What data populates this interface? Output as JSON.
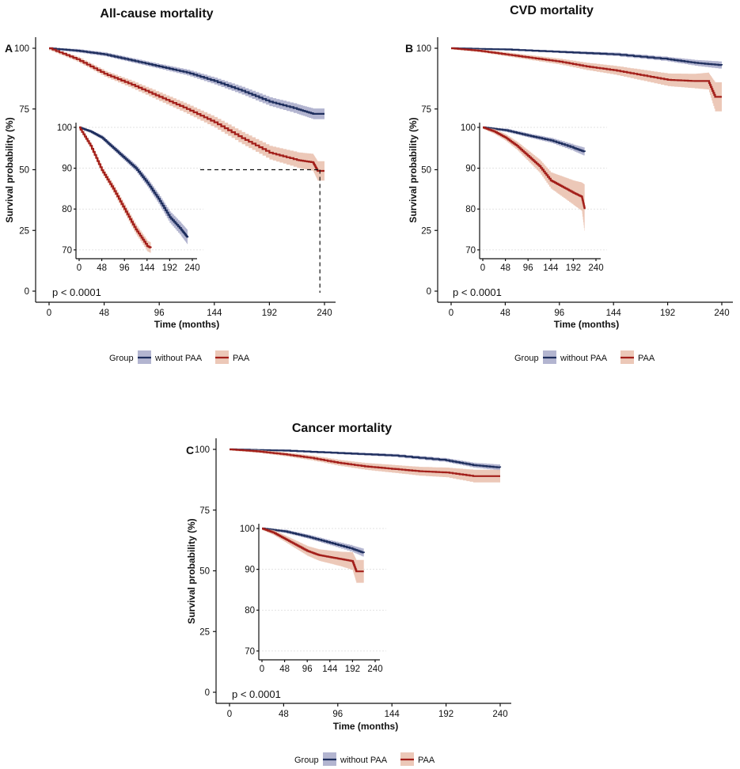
{
  "chart_data": [
    {
      "panel": "A",
      "title": "All-cause mortality",
      "type": "line",
      "xlabel": "Time (months)",
      "ylabel": "Survival probability (%)",
      "xticks": [
        0,
        48,
        96,
        144,
        192,
        240
      ],
      "yticks": [
        0,
        25,
        50,
        75,
        100
      ],
      "xlim": [
        0,
        240
      ],
      "ylim": [
        0,
        100
      ],
      "pvalue": "p < 0.0001",
      "median_line": {
        "x": 236,
        "y": 50
      },
      "series": [
        {
          "name": "without PAA",
          "color": "#1f2f5e",
          "band": "#9a9cc0",
          "x": [
            0,
            24,
            48,
            72,
            96,
            120,
            144,
            168,
            192,
            216,
            230,
            240
          ],
          "y": [
            100,
            99,
            97.5,
            95,
            92.5,
            90,
            86.5,
            82.5,
            78,
            75,
            73,
            73
          ],
          "ci": [
            0.6,
            0.7,
            0.8,
            0.9,
            1.0,
            1.2,
            1.4,
            1.6,
            1.8,
            2.0,
            2.2,
            2.2
          ]
        },
        {
          "name": "PAA",
          "color": "#a31f1a",
          "band": "#e6b5a0",
          "x": [
            0,
            24,
            48,
            72,
            96,
            120,
            144,
            168,
            192,
            216,
            230,
            234,
            240
          ],
          "y": [
            100,
            95.5,
            89.5,
            85,
            80,
            75,
            69.5,
            63,
            57,
            54,
            53,
            49.5,
            49.5
          ],
          "ci": [
            0.8,
            1.0,
            1.2,
            1.5,
            1.8,
            2.0,
            2.2,
            2.5,
            2.8,
            3.2,
            3.5,
            4.0,
            4.0
          ]
        }
      ],
      "inset": {
        "xticks": [
          0,
          48,
          96,
          144,
          192,
          240
        ],
        "yticks": [
          70,
          80,
          90,
          100
        ],
        "xlim": [
          0,
          240
        ],
        "ylim": [
          69,
          100
        ],
        "series": [
          {
            "name": "without PAA",
            "x": [
              0,
              24,
              48,
              72,
              96,
              120,
              144,
              168,
              192,
              216,
              230
            ],
            "y": [
              100,
              99,
              97.5,
              95,
              92.5,
              90,
              86.5,
              82.5,
              78,
              75,
              73
            ],
            "ci": [
              0.3,
              0.4,
              0.5,
              0.6,
              0.7,
              0.8,
              1.0,
              1.2,
              1.4,
              1.6,
              1.8
            ]
          },
          {
            "name": "PAA",
            "x": [
              0,
              24,
              48,
              72,
              96,
              120,
              144,
              152
            ],
            "y": [
              100,
              95.5,
              89.5,
              85,
              80,
              75,
              71,
              70.5
            ],
            "ci": [
              0.4,
              0.6,
              0.8,
              1.0,
              1.1,
              1.2,
              1.3,
              1.3
            ]
          }
        ]
      }
    },
    {
      "panel": "B",
      "title": "CVD mortality",
      "type": "line",
      "xlabel": "Time (months)",
      "ylabel": "Survival probability (%)",
      "xticks": [
        0,
        48,
        96,
        144,
        192,
        240
      ],
      "yticks": [
        0,
        25,
        50,
        75,
        100
      ],
      "xlim": [
        0,
        240
      ],
      "ylim": [
        0,
        100
      ],
      "pvalue": "p < 0.0001",
      "series": [
        {
          "name": "without PAA",
          "color": "#1f2f5e",
          "band": "#9a9cc0",
          "x": [
            0,
            48,
            96,
            144,
            192,
            216,
            240
          ],
          "y": [
            100,
            99.5,
            98.5,
            97.5,
            95.5,
            94,
            93
          ],
          "ci": [
            0.3,
            0.4,
            0.5,
            0.7,
            0.9,
            1.2,
            1.5
          ]
        },
        {
          "name": "PAA",
          "color": "#a31f1a",
          "band": "#e6b5a0",
          "x": [
            0,
            24,
            48,
            72,
            96,
            120,
            144,
            168,
            192,
            216,
            228,
            234,
            240
          ],
          "y": [
            100,
            99,
            97.5,
            96,
            94.5,
            92.5,
            91,
            89,
            87,
            86.5,
            86.5,
            80,
            80
          ],
          "ci": [
            0.5,
            0.6,
            0.8,
            1.0,
            1.2,
            1.5,
            1.8,
            2.2,
            2.6,
            3.0,
            3.5,
            6.0,
            6.0
          ]
        }
      ],
      "inset": {
        "xticks": [
          0,
          48,
          96,
          144,
          192,
          240
        ],
        "yticks": [
          70,
          80,
          90,
          100
        ],
        "xlim": [
          0,
          240
        ],
        "ylim": [
          69,
          100
        ],
        "series": [
          {
            "name": "without PAA",
            "x": [
              0,
              48,
              96,
              144,
              192,
              216
            ],
            "y": [
              100,
              99.3,
              98,
              96.8,
              95,
              94
            ],
            "ci": [
              0.3,
              0.4,
              0.5,
              0.6,
              0.8,
              1.0
            ]
          },
          {
            "name": "PAA",
            "x": [
              0,
              24,
              48,
              72,
              96,
              120,
              144,
              168,
              192,
              210,
              216
            ],
            "y": [
              100,
              99,
              97.5,
              95.5,
              93,
              90.5,
              87,
              85.5,
              84,
              83,
              80
            ],
            "ci": [
              0.4,
              0.6,
              0.8,
              1.0,
              1.3,
              1.6,
              2.0,
              2.5,
              3.0,
              3.5,
              6.0
            ]
          }
        ]
      }
    },
    {
      "panel": "C",
      "title": "Cancer mortality",
      "type": "line",
      "xlabel": "Time (months)",
      "ylabel": "Survival probability (%)",
      "xticks": [
        0,
        48,
        96,
        144,
        192,
        240
      ],
      "yticks": [
        0,
        25,
        50,
        75,
        100
      ],
      "xlim": [
        0,
        240
      ],
      "ylim": [
        0,
        100
      ],
      "pvalue": "p < 0.0001",
      "series": [
        {
          "name": "without PAA",
          "color": "#1f2f5e",
          "band": "#9a9cc0",
          "x": [
            0,
            48,
            96,
            144,
            192,
            216,
            240
          ],
          "y": [
            100,
            99.5,
            98.5,
            97.5,
            95.5,
            93.5,
            92.5
          ],
          "ci": [
            0.3,
            0.4,
            0.5,
            0.6,
            0.8,
            1.0,
            1.2
          ]
        },
        {
          "name": "PAA",
          "color": "#a31f1a",
          "band": "#e6b5a0",
          "x": [
            0,
            24,
            48,
            72,
            96,
            120,
            144,
            168,
            192,
            216,
            240
          ],
          "y": [
            100,
            99.2,
            98,
            96.5,
            94.5,
            93,
            92,
            91,
            90.5,
            89,
            89
          ],
          "ci": [
            0.5,
            0.6,
            0.8,
            1.0,
            1.2,
            1.4,
            1.6,
            1.8,
            2.0,
            2.6,
            2.6
          ]
        }
      ],
      "inset": {
        "xticks": [
          0,
          48,
          96,
          144,
          192,
          240
        ],
        "yticks": [
          70,
          80,
          90,
          100
        ],
        "xlim": [
          0,
          240
        ],
        "ylim": [
          69,
          100
        ],
        "series": [
          {
            "name": "without PAA",
            "x": [
              0,
              48,
              96,
              144,
              192,
              216
            ],
            "y": [
              100,
              99.3,
              98,
              96.5,
              95,
              94
            ],
            "ci": [
              0.3,
              0.4,
              0.5,
              0.6,
              0.8,
              1.0
            ]
          },
          {
            "name": "PAA",
            "x": [
              0,
              24,
              48,
              72,
              96,
              120,
              144,
              168,
              192,
              200,
              216
            ],
            "y": [
              100,
              99,
              97.5,
              96,
              94.5,
              93.5,
              93,
              92.5,
              92,
              89.5,
              89.5
            ],
            "ci": [
              0.4,
              0.6,
              0.8,
              1.0,
              1.2,
              1.4,
              1.6,
              1.8,
              2.2,
              2.8,
              2.8
            ]
          }
        ]
      }
    }
  ],
  "legend": {
    "title": "Group",
    "items": [
      {
        "label": "without PAA",
        "color": "#1f2f5e",
        "band": "#9a9cc0"
      },
      {
        "label": "PAA",
        "color": "#a31f1a",
        "band": "#e6b5a0"
      }
    ]
  }
}
